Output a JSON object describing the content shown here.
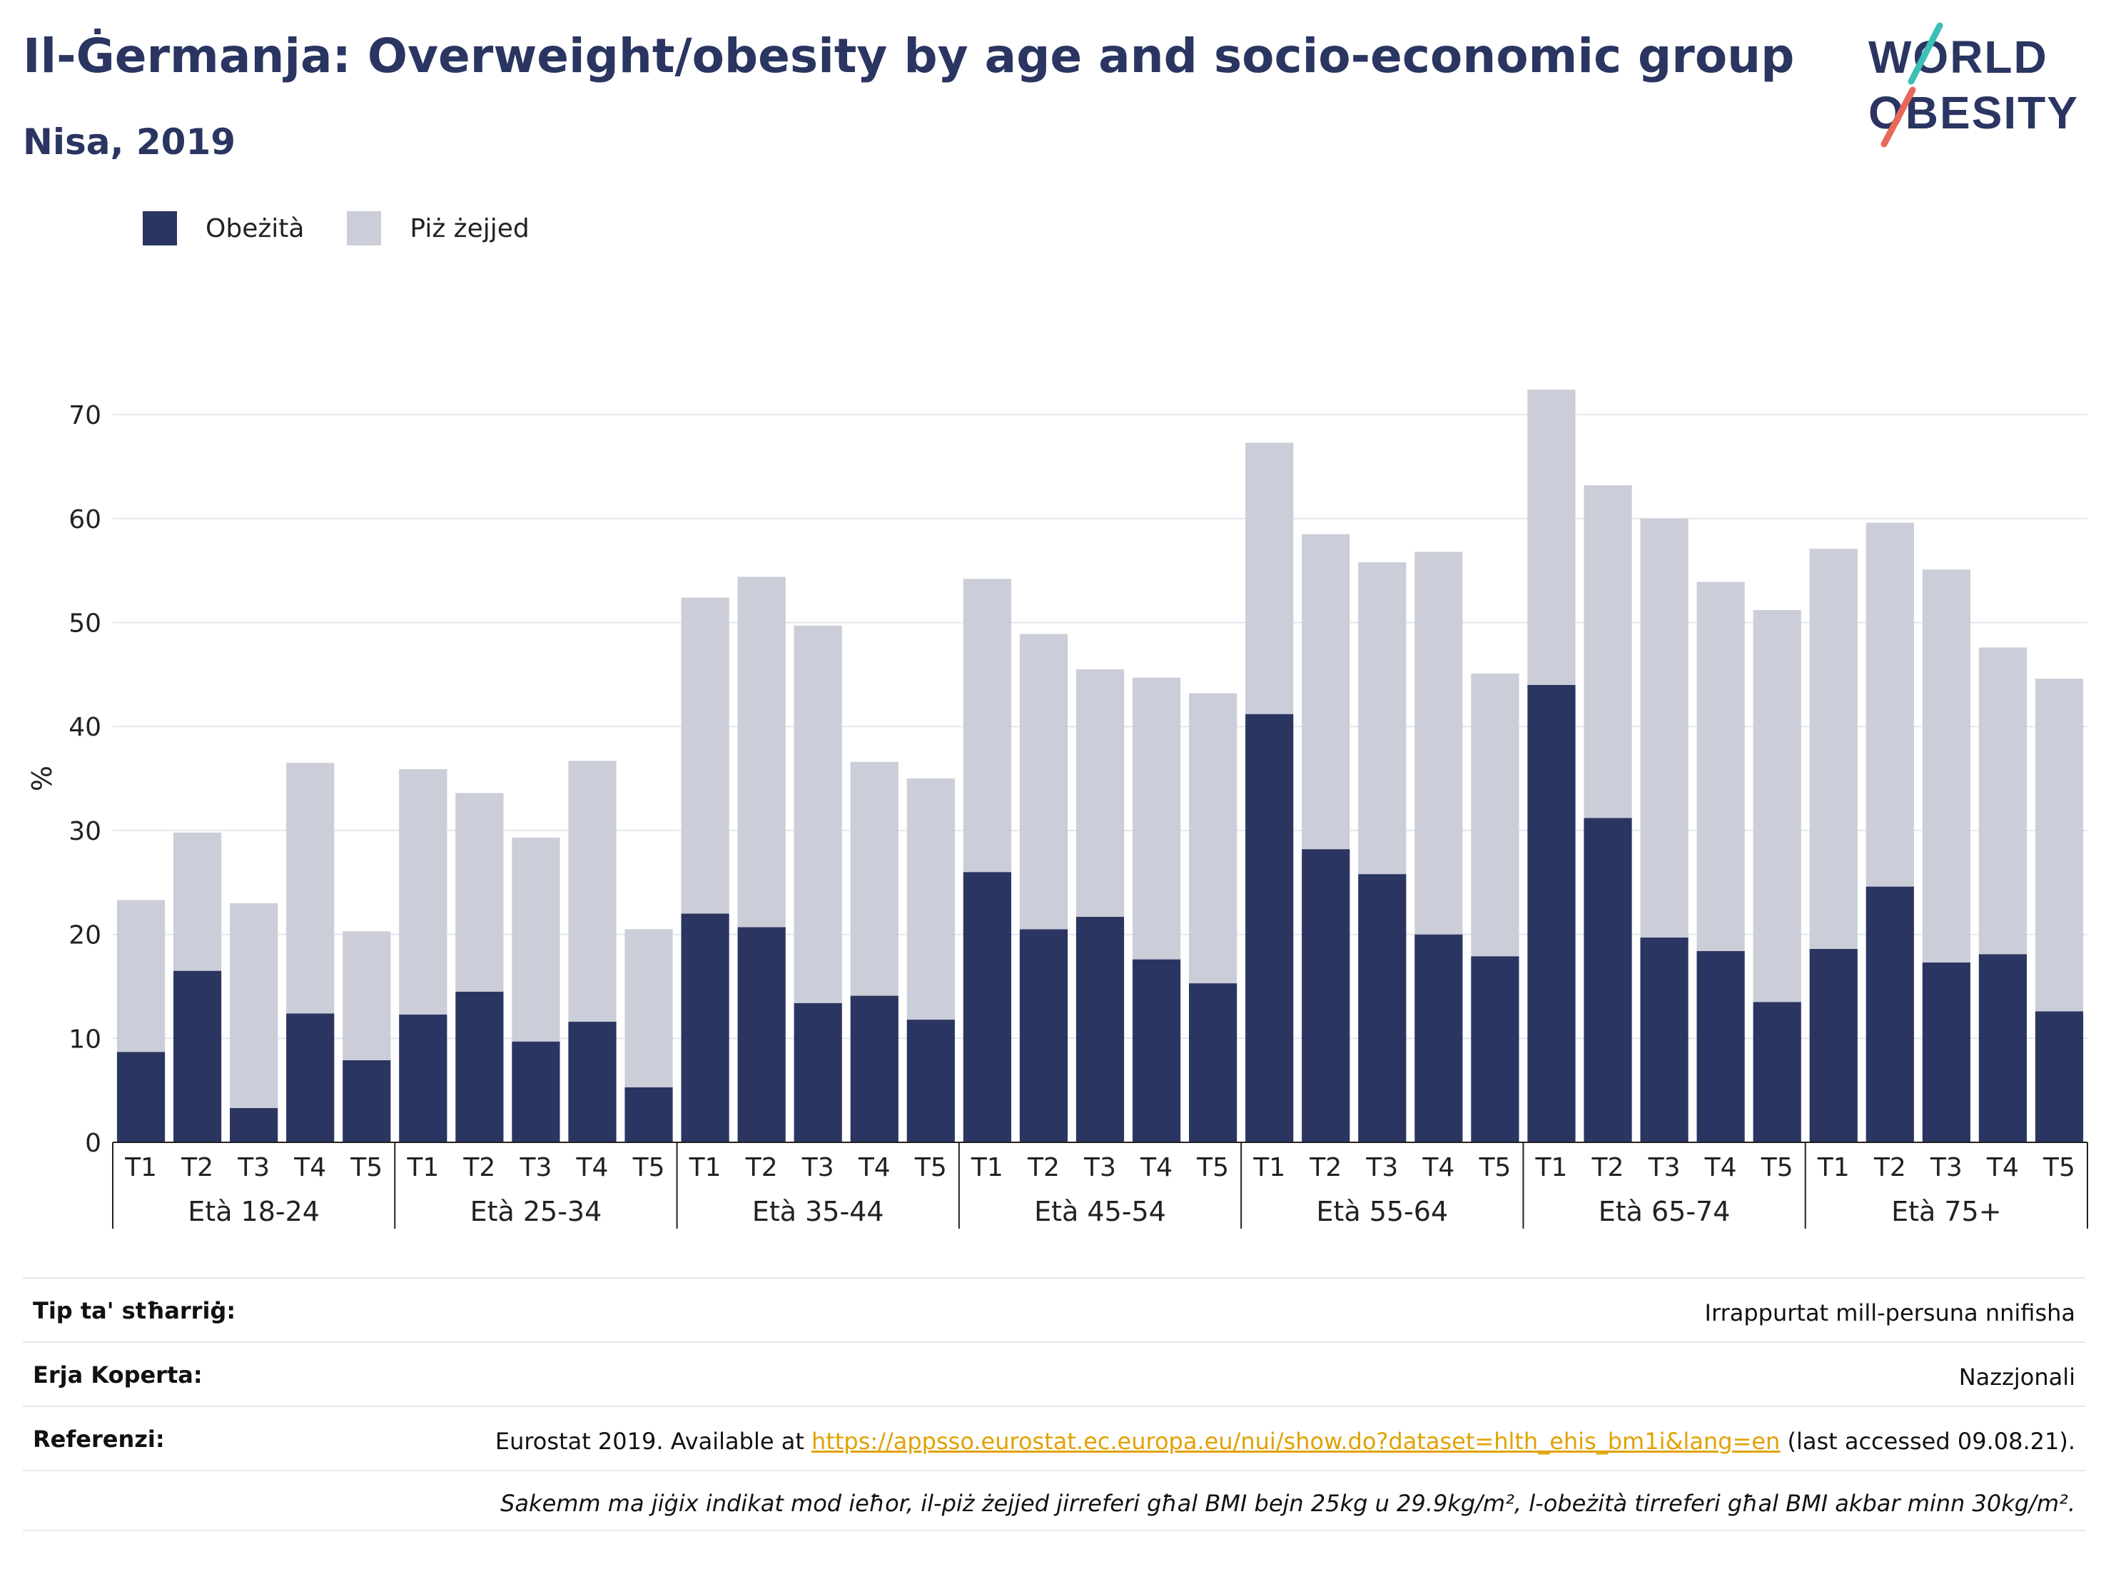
{
  "header": {
    "title": "Il-Ġermanja: Overweight/obesity by age and socio-economic group",
    "subtitle": "Nisa, 2019"
  },
  "logo": {
    "line1": "WORLD",
    "line2": "OBESITY"
  },
  "chart_data": {
    "type": "bar",
    "stacked": true,
    "ylabel": "%",
    "ylim": [
      0,
      75
    ],
    "yticks": [
      0,
      10,
      20,
      30,
      40,
      50,
      60,
      70
    ],
    "grid": true,
    "legend_position": "top-left",
    "groups": [
      "Età 18-24",
      "Età 25-34",
      "Età 35-44",
      "Età 45-54",
      "Età 55-64",
      "Età 65-74",
      "Età 75+"
    ],
    "categories": [
      "T1",
      "T2",
      "T3",
      "T4",
      "T5"
    ],
    "series": [
      {
        "name": "Obeżità",
        "color": "#2a3561",
        "values": [
          [
            8.7,
            16.5,
            3.3,
            12.4,
            7.9
          ],
          [
            12.3,
            14.5,
            9.7,
            11.6,
            5.3
          ],
          [
            22.0,
            20.7,
            13.4,
            14.1,
            11.8
          ],
          [
            26.0,
            20.5,
            21.7,
            17.6,
            15.3
          ],
          [
            41.2,
            28.2,
            25.8,
            20.0,
            17.9
          ],
          [
            44.0,
            31.2,
            19.7,
            18.4,
            13.5
          ],
          [
            18.6,
            24.6,
            17.3,
            18.1,
            12.6
          ]
        ]
      },
      {
        "name": "Piż żejjed",
        "color": "#cbcdd8",
        "values": [
          [
            14.6,
            13.3,
            19.7,
            24.1,
            12.4
          ],
          [
            23.6,
            19.1,
            19.6,
            25.1,
            15.2
          ],
          [
            30.4,
            33.7,
            36.3,
            22.5,
            23.2
          ],
          [
            28.2,
            28.4,
            23.8,
            27.1,
            27.9
          ],
          [
            26.1,
            30.3,
            30.0,
            36.8,
            27.2
          ],
          [
            28.4,
            32.0,
            40.3,
            35.5,
            37.7
          ],
          [
            38.5,
            35.0,
            37.8,
            29.5,
            32.0
          ]
        ]
      }
    ]
  },
  "footer": {
    "rows": [
      {
        "label": "Tip ta' stħarriġ:",
        "value": "Irrappurtat mill-persuna nnifisha"
      },
      {
        "label": "Erja Koperta:",
        "value": "Nazzjonali"
      }
    ],
    "references": {
      "label": "Referenzi:",
      "prefix": "Eurostat 2019. Available at ",
      "link": "https://appsso.eurostat.ec.europa.eu/nui/show.do?dataset=hlth_ehis_bm1i&lang=en",
      "suffix": " (last accessed 09.08.21)."
    },
    "note": "Sakemm ma jiġix indikat mod ieħor, il-piż żejjed jirreferi għal BMI bejn 25kg u 29.9kg/m², l-obeżità tirreferi għal BMI akbar minn 30kg/m²."
  }
}
